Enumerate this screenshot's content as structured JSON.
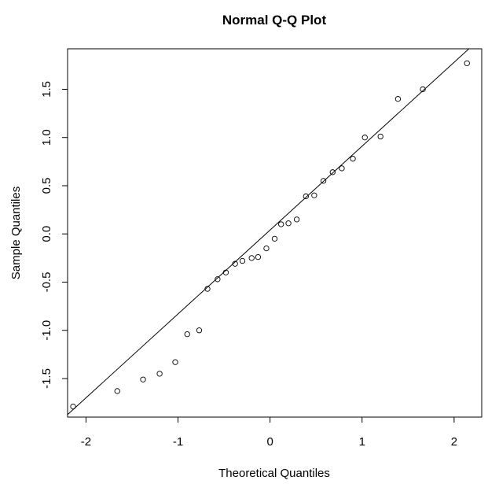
{
  "chart_data": {
    "type": "scatter",
    "title": "Normal Q-Q Plot",
    "xlabel": "Theoretical Quantiles",
    "ylabel": "Sample Quantiles",
    "xlim": [
      -2.2,
      2.3
    ],
    "ylim": [
      -1.9,
      1.92
    ],
    "x_ticks": [
      -2,
      -1,
      0,
      1,
      2
    ],
    "x_tick_labels": [
      "-2",
      "-1",
      "0",
      "1",
      "2"
    ],
    "y_ticks": [
      -1.5,
      -1.0,
      -0.5,
      0.0,
      0.5,
      1.0,
      1.5
    ],
    "y_tick_labels": [
      "-1.5",
      "-1.0",
      "-0.5",
      "0.0",
      "0.5",
      "1.0",
      "1.5"
    ],
    "grid": false,
    "point_style": "open-circle",
    "points": [
      {
        "x": -2.14,
        "y": -1.79
      },
      {
        "x": -1.66,
        "y": -1.63
      },
      {
        "x": -1.38,
        "y": -1.51
      },
      {
        "x": -1.2,
        "y": -1.45
      },
      {
        "x": -1.03,
        "y": -1.33
      },
      {
        "x": -0.9,
        "y": -1.04
      },
      {
        "x": -0.77,
        "y": -1.0
      },
      {
        "x": -0.68,
        "y": -0.57
      },
      {
        "x": -0.57,
        "y": -0.47
      },
      {
        "x": -0.48,
        "y": -0.4
      },
      {
        "x": -0.38,
        "y": -0.31
      },
      {
        "x": -0.3,
        "y": -0.28
      },
      {
        "x": -0.2,
        "y": -0.25
      },
      {
        "x": -0.13,
        "y": -0.24
      },
      {
        "x": -0.04,
        "y": -0.15
      },
      {
        "x": 0.05,
        "y": -0.05
      },
      {
        "x": 0.12,
        "y": 0.1
      },
      {
        "x": 0.2,
        "y": 0.11
      },
      {
        "x": 0.29,
        "y": 0.15
      },
      {
        "x": 0.39,
        "y": 0.39
      },
      {
        "x": 0.48,
        "y": 0.4
      },
      {
        "x": 0.58,
        "y": 0.55
      },
      {
        "x": 0.68,
        "y": 0.64
      },
      {
        "x": 0.78,
        "y": 0.68
      },
      {
        "x": 0.9,
        "y": 0.78
      },
      {
        "x": 1.03,
        "y": 1.0
      },
      {
        "x": 1.2,
        "y": 1.01
      },
      {
        "x": 1.39,
        "y": 1.4
      },
      {
        "x": 1.66,
        "y": 1.5
      },
      {
        "x": 2.14,
        "y": 1.77
      }
    ],
    "reference_line": {
      "intercept": 0.04,
      "slope": 0.87
    }
  }
}
